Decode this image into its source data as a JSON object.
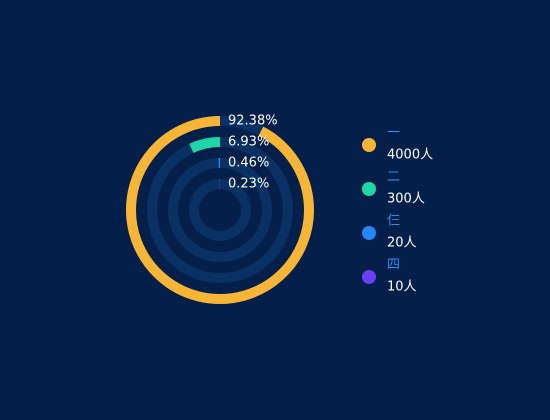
{
  "chart_data": {
    "type": "radial-bar",
    "categories": [
      "一",
      "二",
      "仨",
      "四"
    ],
    "values": [
      4000,
      300,
      20,
      10
    ],
    "value_labels": [
      "4000人",
      "300人",
      "20人",
      "10人"
    ],
    "percentages": [
      92.38,
      6.93,
      0.46,
      0.23
    ],
    "percentage_labels": [
      "92.38%",
      "6.93%",
      "0.46%",
      "0.23%"
    ],
    "colors": [
      "#f7b538",
      "#1fd6a8",
      "#2586f5",
      "#6a3ef3"
    ]
  }
}
